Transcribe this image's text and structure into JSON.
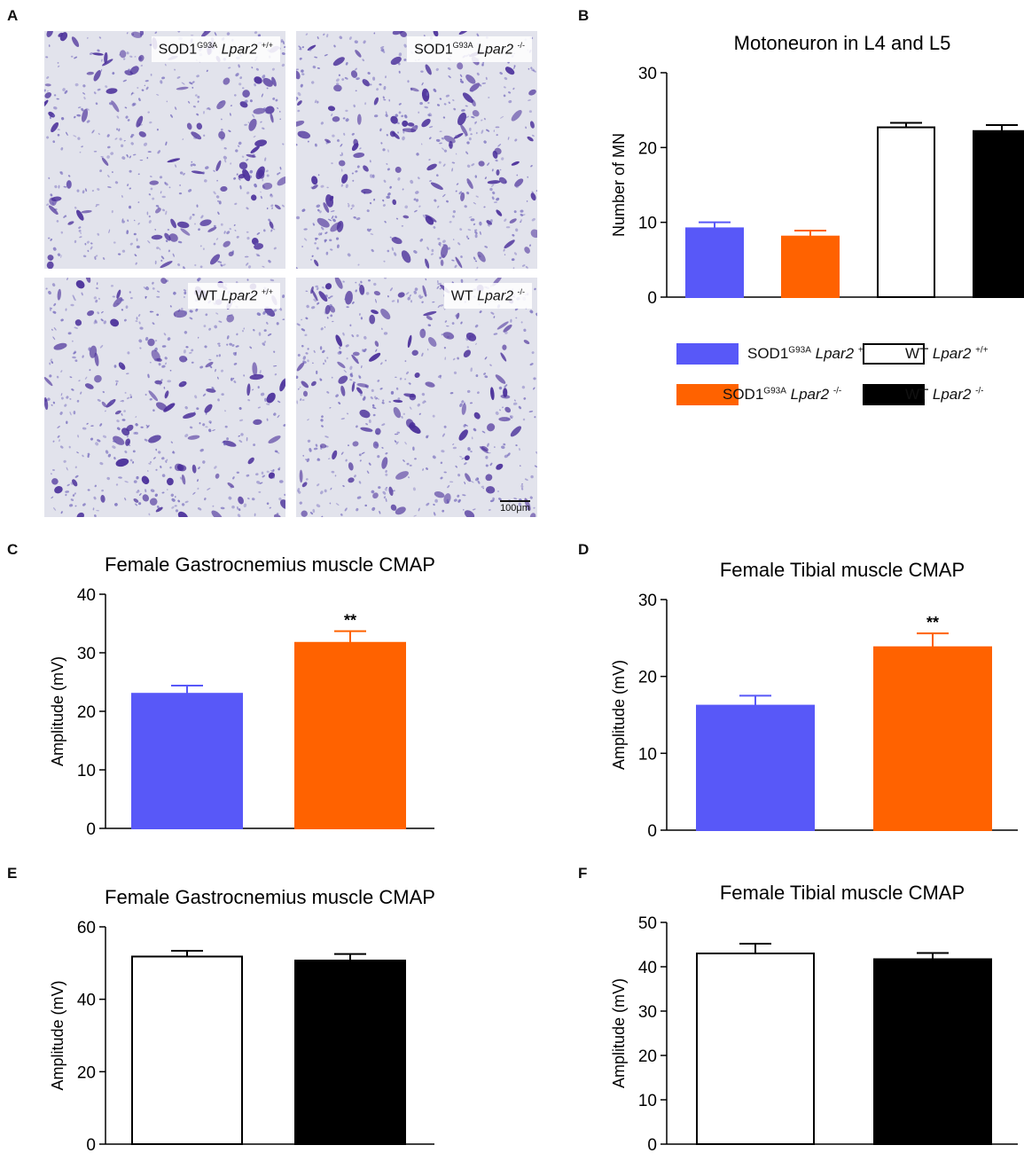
{
  "panels": {
    "a": "A",
    "b": "B",
    "c": "C",
    "d": "D",
    "e": "E",
    "f": "F"
  },
  "micrographs": [
    {
      "base": "SOD1",
      "sup1": "G93A",
      "gene": "Lpar2",
      "sup2": "+/+"
    },
    {
      "base": "SOD1",
      "sup1": "G93A",
      "gene": "Lpar2",
      "sup2": "-/-"
    },
    {
      "base": "WT",
      "sup1": "",
      "gene": "Lpar2",
      "sup2": "+/+"
    },
    {
      "base": "WT",
      "sup1": "",
      "gene": "Lpar2",
      "sup2": "-/-"
    }
  ],
  "scale_bar": "100μm",
  "legend": [
    {
      "base": "SOD1",
      "sup1": "G93A",
      "gene": "Lpar2",
      "sup2": "+/+",
      "color": "#5858f8"
    },
    {
      "base": "WT",
      "sup1": "",
      "gene": "Lpar2",
      "sup2": "+/+",
      "color": "#ffffff"
    },
    {
      "base": "SOD1",
      "sup1": "G93A",
      "gene": "Lpar2",
      "sup2": "-/-",
      "color": "#ff6200"
    },
    {
      "base": "WT",
      "sup1": "",
      "gene": "Lpar2",
      "sup2": "-/-",
      "color": "#000000"
    }
  ],
  "chart_data": [
    {
      "id": "B",
      "type": "bar",
      "title": "Motoneuron in L4 and L5",
      "ylabel": "Number of MN",
      "ylim": [
        0,
        30
      ],
      "yticks": [
        0,
        10,
        20,
        30
      ],
      "categories": [
        "SOD1 G93A Lpar2 +/+",
        "SOD1 G93A Lpar2 -/-",
        "WT Lpar2 +/+",
        "WT Lpar2 -/-"
      ],
      "values": [
        9.2,
        8.1,
        22.7,
        22.2
      ],
      "errors": [
        0.8,
        0.8,
        0.6,
        0.8
      ],
      "colors": [
        "#5858f8",
        "#ff6200",
        "#ffffff",
        "#000000"
      ],
      "annotations": [
        "",
        "",
        "",
        ""
      ]
    },
    {
      "id": "C",
      "type": "bar",
      "title": "Female Gastrocnemius muscle CMAP",
      "ylabel": "Amplitude (mV)",
      "ylim": [
        0,
        40
      ],
      "yticks": [
        0,
        10,
        20,
        30,
        40
      ],
      "categories": [
        "SOD1 G93A Lpar2 +/+",
        "SOD1 G93A Lpar2 -/-"
      ],
      "values": [
        23.0,
        31.7
      ],
      "errors": [
        1.4,
        2.0
      ],
      "colors": [
        "#5858f8",
        "#ff6200"
      ],
      "annotations": [
        "",
        "**"
      ]
    },
    {
      "id": "D",
      "type": "bar",
      "title": "Female Tibial muscle CMAP",
      "ylabel": "Amplitude (mV)",
      "ylim": [
        0,
        30
      ],
      "yticks": [
        0,
        10,
        20,
        30
      ],
      "categories": [
        "SOD1 G93A Lpar2 +/+",
        "SOD1 G93A Lpar2 -/-"
      ],
      "values": [
        16.2,
        23.8
      ],
      "errors": [
        1.3,
        1.8
      ],
      "colors": [
        "#5858f8",
        "#ff6200"
      ],
      "annotations": [
        "",
        "**"
      ]
    },
    {
      "id": "E",
      "type": "bar",
      "title": "Female Gastrocnemius muscle CMAP",
      "ylabel": "Amplitude (mV)",
      "ylim": [
        0,
        60
      ],
      "yticks": [
        0,
        20,
        40,
        60
      ],
      "categories": [
        "WT Lpar2 +/+",
        "WT Lpar2 -/-"
      ],
      "values": [
        51.8,
        50.7
      ],
      "errors": [
        1.6,
        1.8
      ],
      "colors": [
        "#ffffff",
        "#000000"
      ],
      "annotations": [
        "",
        ""
      ]
    },
    {
      "id": "F",
      "type": "bar",
      "title": "Female Tibial muscle CMAP",
      "ylabel": "Amplitude (mV)",
      "ylim": [
        0,
        50
      ],
      "yticks": [
        0,
        10,
        20,
        30,
        40,
        50
      ],
      "categories": [
        "WT Lpar2 +/+",
        "WT Lpar2 -/-"
      ],
      "values": [
        43.0,
        41.7
      ],
      "errors": [
        2.2,
        1.4
      ],
      "colors": [
        "#ffffff",
        "#000000"
      ],
      "annotations": [
        "",
        ""
      ]
    }
  ]
}
